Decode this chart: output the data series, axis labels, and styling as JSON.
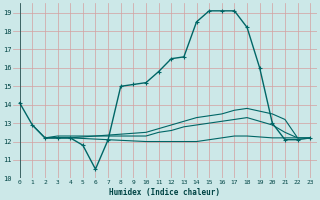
{
  "xlabel": "Humidex (Indice chaleur)",
  "bg_color": "#cce8e8",
  "grid_color": "#d4a0a0",
  "line_color": "#006666",
  "xlim": [
    -0.5,
    23.5
  ],
  "ylim": [
    10,
    19.5
  ],
  "yticks": [
    10,
    11,
    12,
    13,
    14,
    15,
    16,
    17,
    18,
    19
  ],
  "xticks": [
    0,
    1,
    2,
    3,
    4,
    5,
    6,
    7,
    8,
    9,
    10,
    11,
    12,
    13,
    14,
    15,
    16,
    17,
    18,
    19,
    20,
    21,
    22,
    23
  ],
  "main_x": [
    0,
    1,
    2,
    3,
    4,
    5,
    6,
    7,
    8,
    9,
    10,
    11,
    12,
    13,
    14,
    15,
    16,
    17,
    18,
    19,
    20,
    21,
    22,
    23
  ],
  "main_y": [
    14.1,
    12.9,
    12.2,
    12.2,
    12.2,
    11.8,
    10.5,
    12.1,
    15.0,
    15.1,
    15.2,
    15.8,
    16.5,
    16.6,
    18.5,
    19.1,
    19.1,
    19.1,
    18.2,
    16.0,
    13.0,
    12.1,
    12.1,
    12.2
  ],
  "flat_lines": [
    {
      "x": [
        1,
        2,
        3,
        4,
        10,
        11,
        12,
        13,
        14,
        15,
        16,
        17,
        18,
        20,
        21,
        22,
        23
      ],
      "y": [
        12.9,
        12.2,
        12.2,
        12.2,
        12.5,
        12.7,
        12.9,
        13.1,
        13.3,
        13.4,
        13.5,
        13.7,
        13.8,
        13.5,
        13.2,
        12.2,
        12.2
      ]
    },
    {
      "x": [
        2,
        3,
        4,
        10,
        11,
        12,
        13,
        14,
        15,
        16,
        17,
        18,
        20,
        21,
        22
      ],
      "y": [
        12.2,
        12.3,
        12.3,
        12.3,
        12.5,
        12.6,
        12.8,
        12.9,
        13.0,
        13.1,
        13.2,
        13.3,
        12.9,
        12.5,
        12.2
      ]
    },
    {
      "x": [
        2,
        3,
        4,
        10,
        11,
        12,
        13,
        14,
        15,
        16,
        17,
        18,
        20,
        21,
        22,
        23
      ],
      "y": [
        12.2,
        12.2,
        12.2,
        12.0,
        12.0,
        12.0,
        12.0,
        12.0,
        12.1,
        12.2,
        12.3,
        12.3,
        12.2,
        12.2,
        12.2,
        12.2
      ]
    }
  ]
}
